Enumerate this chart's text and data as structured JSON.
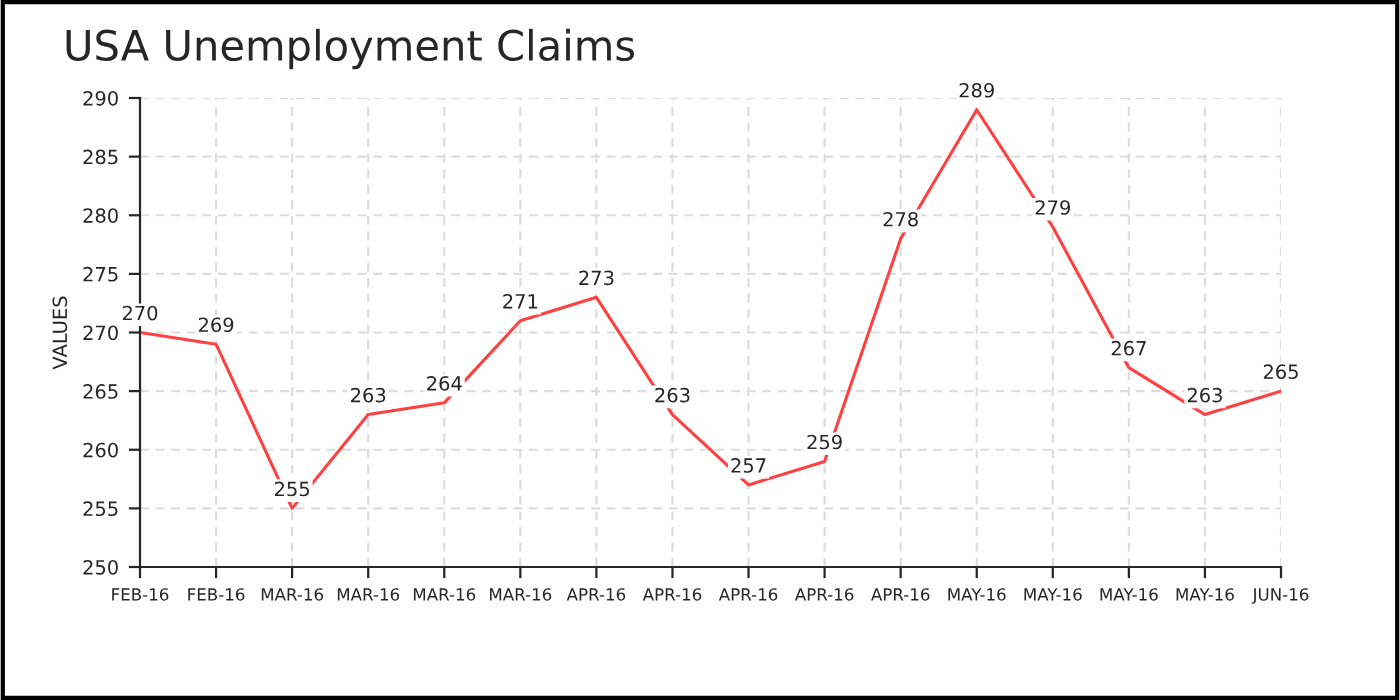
{
  "chart_data": {
    "type": "line",
    "title": "USA Unemployment Claims",
    "ylabel": "VALUES",
    "categories": [
      "FEB-16",
      "FEB-16",
      "MAR-16",
      "MAR-16",
      "MAR-16",
      "MAR-16",
      "APR-16",
      "APR-16",
      "APR-16",
      "APR-16",
      "APR-16",
      "MAY-16",
      "MAY-16",
      "MAY-16",
      "MAY-16",
      "JUN-16"
    ],
    "series": [
      {
        "color": "#ff4040",
        "values": [
          270,
          269,
          255,
          263,
          264,
          271,
          273,
          263,
          257,
          259,
          278,
          289,
          279,
          267,
          263,
          265
        ]
      }
    ],
    "ylim": [
      250,
      290
    ],
    "yticks": [
      250,
      255,
      260,
      265,
      270,
      275,
      280,
      285,
      290
    ],
    "grid": true,
    "data_labels": true,
    "marker": "none",
    "line_style": "solid"
  }
}
